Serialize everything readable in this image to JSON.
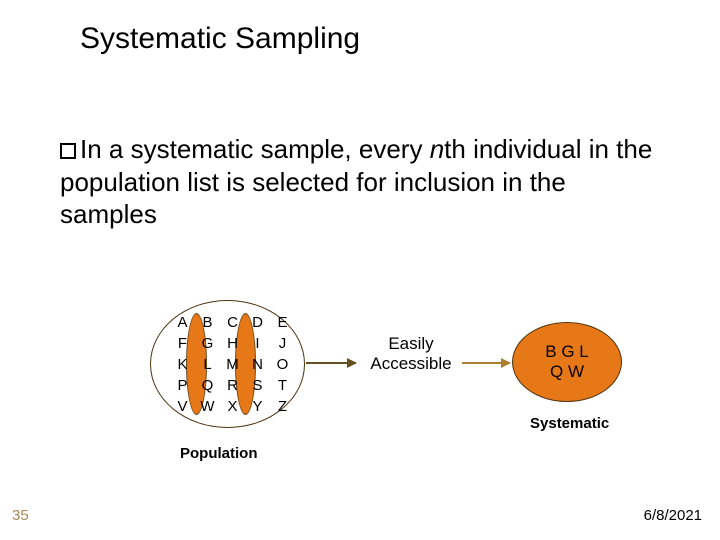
{
  "title": "Systematic Sampling",
  "body": {
    "pre": "In a systematic sample, every ",
    "nth": "n",
    "post_n": "th individual in the population list is selected for inclusion in the samples"
  },
  "population": {
    "rows": [
      [
        "A",
        "B",
        "C",
        "D",
        "E"
      ],
      [
        "F",
        "G",
        "H",
        "I",
        "J"
      ],
      [
        "K",
        "L",
        "M",
        "N",
        "O"
      ],
      [
        "P",
        "Q",
        "R",
        "S",
        "T"
      ],
      [
        "V",
        "W",
        "X",
        "Y",
        "Z"
      ]
    ],
    "label": "Population",
    "circle_border": "#4d3310",
    "highlight_fill": "#e77817",
    "highlight_border": "#6b4a1f"
  },
  "middle_label": "Easily Accessible",
  "sample": {
    "line1": "B G L",
    "line2": "Q W",
    "label": "Systematic",
    "fill": "#e77817",
    "border": "#4d3310"
  },
  "arrow_color": "#655021",
  "arrow2_color": "#aa7f2e",
  "footer": {
    "page": "35",
    "date": "6/8/2021"
  },
  "fonts": {
    "title_pt": 30,
    "body_pt": 26,
    "small_pt": 15
  },
  "background": "#ffffff"
}
